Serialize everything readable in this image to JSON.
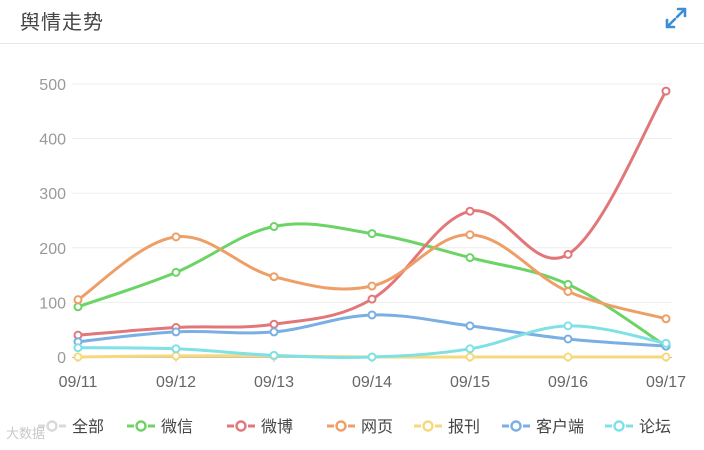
{
  "header": {
    "title": "舆情走势",
    "expand_icon": "expand-diagonal-icon",
    "accent_color": "#3a8fd6"
  },
  "watermark": {
    "text": "大数据"
  },
  "chart_data": {
    "type": "line",
    "categories": [
      "09/11",
      "09/12",
      "09/13",
      "09/14",
      "09/15",
      "09/16",
      "09/17"
    ],
    "ylim": [
      0,
      500
    ],
    "yticks": [
      0,
      100,
      200,
      300,
      400,
      500
    ],
    "grid": true,
    "legend_position": "bottom",
    "smooth": true,
    "series": [
      {
        "name": "全部",
        "color": "#d9d9d9",
        "values": [
          0,
          0,
          0,
          0,
          0,
          0,
          0
        ],
        "line": false
      },
      {
        "name": "微信",
        "color": "#6cd465",
        "values": [
          92,
          155,
          239,
          226,
          182,
          133,
          20
        ]
      },
      {
        "name": "微博",
        "color": "#e2777a",
        "values": [
          40,
          54,
          60,
          106,
          267,
          188,
          487
        ]
      },
      {
        "name": "网页",
        "color": "#ee9f68",
        "values": [
          105,
          220,
          147,
          130,
          224,
          120,
          70
        ]
      },
      {
        "name": "报刊",
        "color": "#f6d97b",
        "values": [
          0,
          2,
          2,
          0,
          0,
          0,
          0
        ]
      },
      {
        "name": "客户端",
        "color": "#7aafe3",
        "values": [
          28,
          46,
          46,
          77,
          57,
          33,
          20
        ]
      },
      {
        "name": "论坛",
        "color": "#7fe0e6",
        "values": [
          17,
          15,
          3,
          0,
          15,
          57,
          25
        ]
      }
    ]
  }
}
